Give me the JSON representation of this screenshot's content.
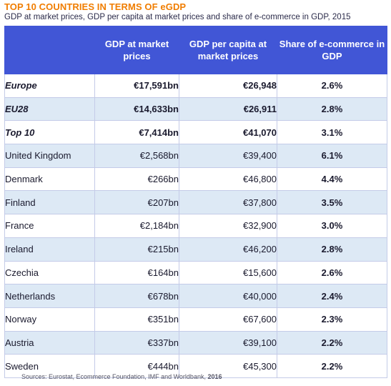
{
  "title": "TOP 10 COUNTRIES IN TERMS OF eGDP",
  "subtitle": "GDP at market prices, GDP per capita at market prices and share of e-commerce in GDP, 2015",
  "table": {
    "headers": [
      "",
      "GDP at market prices",
      "GDP per capita at market prices",
      "Share of e-commerce in GDP"
    ],
    "rows": [
      {
        "country": "Europe",
        "gdp": "€17,591bn",
        "gdp_per_capita": "€26,948",
        "share": "2.6%"
      },
      {
        "country": "EU28",
        "gdp": "€14,633bn",
        "gdp_per_capita": "€26,911",
        "share": "2.8%"
      },
      {
        "country": "Top 10",
        "gdp": "€7,414bn",
        "gdp_per_capita": "€41,070",
        "share": "3.1%"
      },
      {
        "country": "United Kingdom",
        "gdp": "€2,568bn",
        "gdp_per_capita": "€39,400",
        "share": "6.1%"
      },
      {
        "country": "Denmark",
        "gdp": "€266bn",
        "gdp_per_capita": "€46,800",
        "share": "4.4%"
      },
      {
        "country": "Finland",
        "gdp": "€207bn",
        "gdp_per_capita": "€37,800",
        "share": "3.5%"
      },
      {
        "country": "France",
        "gdp": "€2,184bn",
        "gdp_per_capita": "€32,900",
        "share": "3.0%"
      },
      {
        "country": "Ireland",
        "gdp": "€215bn",
        "gdp_per_capita": "€46,200",
        "share": "2.8%"
      },
      {
        "country": "Czechia",
        "gdp": "€164bn",
        "gdp_per_capita": "€15,600",
        "share": "2.6%"
      },
      {
        "country": "Netherlands",
        "gdp": "€678bn",
        "gdp_per_capita": "€40,000",
        "share": "2.4%"
      },
      {
        "country": "Norway",
        "gdp": "€351bn",
        "gdp_per_capita": "€67,600",
        "share": "2.3%"
      },
      {
        "country": "Austria",
        "gdp": "€337bn",
        "gdp_per_capita": "€39,100",
        "share": "2.2%"
      },
      {
        "country": "Sweden",
        "gdp": "€444bn",
        "gdp_per_capita": "€45,300",
        "share": "2.2%"
      }
    ]
  },
  "source": {
    "text": "Sources: Eurostat, Ecommerce Foundation, IMF and Worldbank, ",
    "year": "2016"
  },
  "colors": {
    "title": "#f07d00",
    "header_bg": "#4156d6",
    "row_alt_bg": "#dde9f5"
  }
}
